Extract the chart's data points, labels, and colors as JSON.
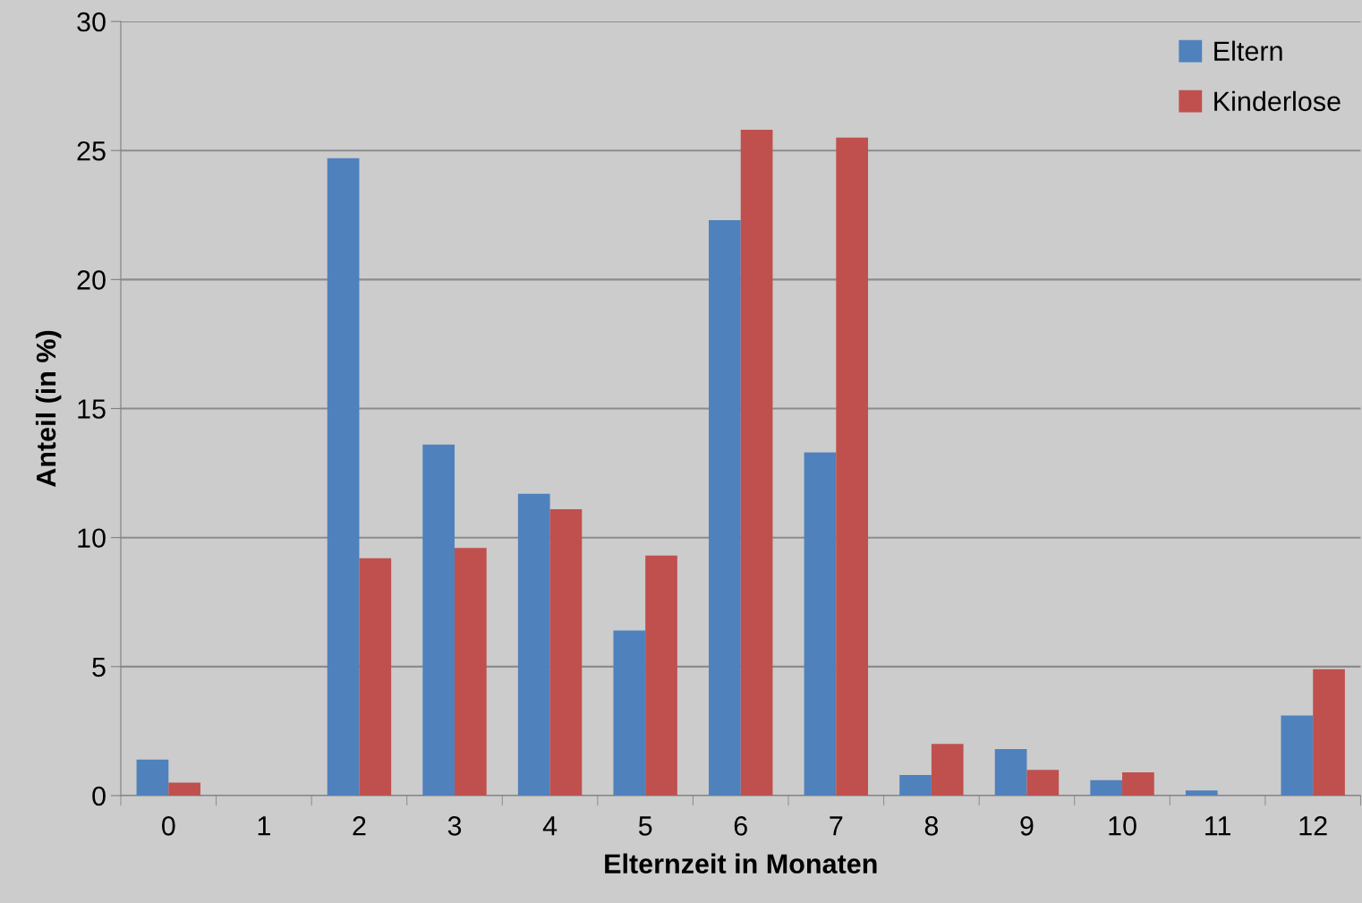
{
  "chart_data": {
    "type": "bar",
    "xlabel": "Elternzeit in Monaten",
    "ylabel": "Anteil (in %)",
    "categories": [
      "0",
      "1",
      "2",
      "3",
      "4",
      "5",
      "6",
      "7",
      "8",
      "9",
      "10",
      "11",
      "12"
    ],
    "series": [
      {
        "name": "Eltern",
        "color": "#4f81bd",
        "values": [
          1.4,
          0,
          24.7,
          13.6,
          11.7,
          6.4,
          22.3,
          13.3,
          0.8,
          1.8,
          0.6,
          0.2,
          3.1
        ]
      },
      {
        "name": "Kinderlose",
        "color": "#c0504d",
        "values": [
          0.5,
          0,
          9.2,
          9.6,
          11.1,
          9.3,
          25.8,
          25.5,
          2.0,
          1.0,
          0.9,
          0,
          4.9
        ]
      }
    ],
    "ylim": [
      0,
      30
    ],
    "yticks": [
      0,
      5,
      10,
      15,
      20,
      25,
      30
    ],
    "grid": "y",
    "legend": "top right"
  }
}
